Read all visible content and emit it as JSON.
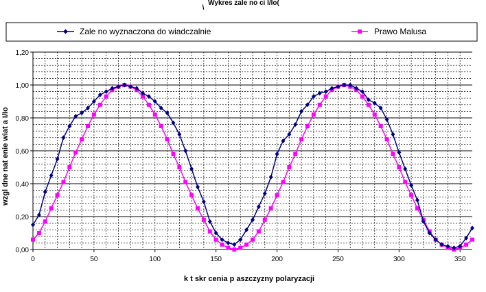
{
  "chart_data": {
    "type": "line",
    "title": "Wykres zale  no  ci I/Io(",
    "title_line2": "\\",
    "xlabel": "k  t skr  cenia p aszczyzny polaryzacji",
    "ylabel": "wzgl dne nat  enie  wiat a I/Io",
    "xlim": [
      0,
      360
    ],
    "ylim": [
      0,
      1.2
    ],
    "x_ticks": [
      "0",
      "50",
      "100",
      "150",
      "200",
      "250",
      "300",
      "350"
    ],
    "y_ticks": [
      "0,00",
      "0,20",
      "0,40",
      "0,60",
      "0,80",
      "1,00",
      "1,20"
    ],
    "legend_position": "top",
    "series": [
      {
        "name": "Zale  no      wyznaczona do  wiadczalnie",
        "color": "#000080",
        "marker": "diamond",
        "x": [
          0,
          5,
          10,
          15,
          20,
          25,
          30,
          35,
          40,
          45,
          50,
          55,
          60,
          65,
          70,
          75,
          80,
          85,
          90,
          95,
          100,
          105,
          110,
          115,
          120,
          125,
          130,
          135,
          140,
          145,
          150,
          155,
          160,
          165,
          170,
          175,
          180,
          185,
          190,
          195,
          200,
          205,
          210,
          215,
          220,
          225,
          230,
          235,
          240,
          245,
          250,
          255,
          260,
          265,
          270,
          275,
          280,
          285,
          290,
          295,
          300,
          305,
          310,
          315,
          320,
          325,
          330,
          335,
          340,
          345,
          350,
          355,
          360
        ],
        "y": [
          0.15,
          0.21,
          0.35,
          0.45,
          0.55,
          0.68,
          0.75,
          0.81,
          0.83,
          0.86,
          0.9,
          0.94,
          0.96,
          0.98,
          0.99,
          1.0,
          0.99,
          0.98,
          0.95,
          0.93,
          0.9,
          0.86,
          0.83,
          0.77,
          0.7,
          0.6,
          0.49,
          0.38,
          0.29,
          0.17,
          0.1,
          0.06,
          0.04,
          0.03,
          0.06,
          0.12,
          0.18,
          0.26,
          0.34,
          0.44,
          0.58,
          0.66,
          0.7,
          0.76,
          0.84,
          0.88,
          0.93,
          0.95,
          0.96,
          0.98,
          0.99,
          1.0,
          1.0,
          0.98,
          0.96,
          0.91,
          0.89,
          0.86,
          0.79,
          0.7,
          0.59,
          0.49,
          0.39,
          0.3,
          0.17,
          0.1,
          0.06,
          0.03,
          0.02,
          0.01,
          0.02,
          0.07,
          0.13
        ]
      },
      {
        "name": "Prawo Malusa",
        "color": "#ff00ff",
        "marker": "square",
        "x": [
          0,
          5,
          10,
          15,
          20,
          25,
          30,
          35,
          40,
          45,
          50,
          55,
          60,
          65,
          70,
          75,
          80,
          85,
          90,
          95,
          100,
          105,
          110,
          115,
          120,
          125,
          130,
          135,
          140,
          145,
          150,
          155,
          160,
          165,
          170,
          175,
          180,
          185,
          190,
          195,
          200,
          205,
          210,
          215,
          220,
          225,
          230,
          235,
          240,
          245,
          250,
          255,
          260,
          265,
          270,
          275,
          280,
          285,
          290,
          295,
          300,
          305,
          310,
          315,
          320,
          325,
          330,
          335,
          340,
          345,
          350,
          355,
          360
        ],
        "y": [
          0.06,
          0.1,
          0.17,
          0.25,
          0.33,
          0.41,
          0.5,
          0.59,
          0.67,
          0.75,
          0.82,
          0.88,
          0.93,
          0.97,
          0.99,
          1.0,
          0.99,
          0.97,
          0.93,
          0.88,
          0.82,
          0.75,
          0.67,
          0.58,
          0.5,
          0.41,
          0.33,
          0.25,
          0.18,
          0.11,
          0.06,
          0.03,
          0.01,
          0.0,
          0.01,
          0.03,
          0.06,
          0.11,
          0.18,
          0.25,
          0.33,
          0.41,
          0.5,
          0.58,
          0.67,
          0.75,
          0.82,
          0.88,
          0.93,
          0.97,
          0.99,
          1.0,
          0.99,
          0.97,
          0.93,
          0.88,
          0.82,
          0.75,
          0.67,
          0.58,
          0.5,
          0.41,
          0.33,
          0.25,
          0.18,
          0.11,
          0.06,
          0.03,
          0.01,
          0.0,
          0.01,
          0.03,
          0.06
        ]
      }
    ]
  }
}
